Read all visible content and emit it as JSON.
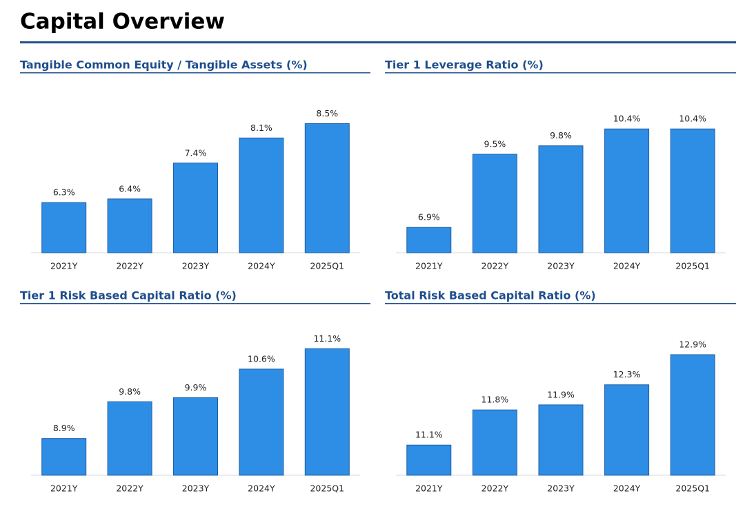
{
  "title": "Capital Overview",
  "chart_data": [
    {
      "type": "bar",
      "title": "Tangible Common Equity / Tangible Assets (%)",
      "categories": [
        "2021Y",
        "2022Y",
        "2023Y",
        "2024Y",
        "2025Q1"
      ],
      "values": [
        6.3,
        6.4,
        7.4,
        8.1,
        8.5
      ],
      "value_labels": [
        "6.3%",
        "6.4%",
        "7.4%",
        "8.1%",
        "8.5%"
      ],
      "color": "#2e8ee6",
      "ylim": [
        4.9,
        9.45
      ]
    },
    {
      "type": "bar",
      "title": "Tier 1 Leverage Ratio (%)",
      "categories": [
        "2021Y",
        "2022Y",
        "2023Y",
        "2024Y",
        "2025Q1"
      ],
      "values": [
        6.9,
        9.5,
        9.8,
        10.4,
        10.4
      ],
      "value_labels": [
        "6.9%",
        "9.5%",
        "9.8%",
        "10.4%",
        "10.4%"
      ],
      "color": "#2e8ee6",
      "ylim": [
        6.0,
        11.8
      ]
    },
    {
      "type": "bar",
      "title": "Tier 1 Risk Based Capital Ratio (%)",
      "categories": [
        "2021Y",
        "2022Y",
        "2023Y",
        "2024Y",
        "2025Q1"
      ],
      "values": [
        8.9,
        9.8,
        9.9,
        10.6,
        11.1
      ],
      "value_labels": [
        "8.9%",
        "9.8%",
        "9.9%",
        "10.6%",
        "11.1%"
      ],
      "color": "#2e8ee6",
      "ylim": [
        8.0,
        12.0
      ]
    },
    {
      "type": "bar",
      "title": "Total Risk Based Capital Ratio (%)",
      "categories": [
        "2021Y",
        "2022Y",
        "2023Y",
        "2024Y",
        "2025Q1"
      ],
      "values": [
        11.1,
        11.8,
        11.9,
        12.3,
        12.9
      ],
      "value_labels": [
        "11.1%",
        "11.8%",
        "11.9%",
        "12.3%",
        "12.9%"
      ],
      "color": "#2e8ee6",
      "ylim": [
        10.5,
        13.75
      ]
    }
  ]
}
